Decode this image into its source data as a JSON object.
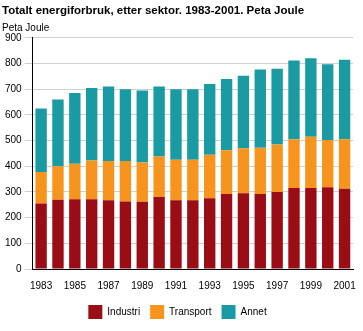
{
  "chart_data": {
    "type": "bar",
    "title": "Totalt energiforbruk, etter sektor. 1983-2001. Peta Joule",
    "y_label": "Peta Joule",
    "stacked": true,
    "grid": true,
    "legend": "bottom",
    "categories": [
      "1983",
      null,
      "1985",
      null,
      "1987",
      null,
      "1989",
      null,
      "1991",
      null,
      "1993",
      null,
      "1995",
      null,
      "1997",
      null,
      "1999",
      null,
      "2001"
    ],
    "ylim": [
      0,
      900
    ],
    "yticks": [
      0,
      100,
      200,
      300,
      400,
      500,
      600,
      700,
      800,
      900
    ],
    "series": [
      {
        "name": "Industri",
        "color": "#9b0d14",
        "values": [
          255,
          270,
          272,
          272,
          268,
          263,
          262,
          280,
          268,
          268,
          275,
          292,
          295,
          292,
          300,
          315,
          315,
          318,
          312
        ]
      },
      {
        "name": "Transport",
        "color": "#f7941d",
        "values": [
          123,
          130,
          138,
          150,
          152,
          157,
          153,
          158,
          157,
          157,
          170,
          170,
          175,
          180,
          185,
          190,
          200,
          184,
          193
        ]
      },
      {
        "name": "Annet",
        "color": "#1a9aa3",
        "values": [
          247,
          260,
          275,
          283,
          290,
          280,
          280,
          272,
          275,
          275,
          275,
          278,
          282,
          305,
          295,
          307,
          305,
          295,
          310
        ]
      }
    ]
  }
}
